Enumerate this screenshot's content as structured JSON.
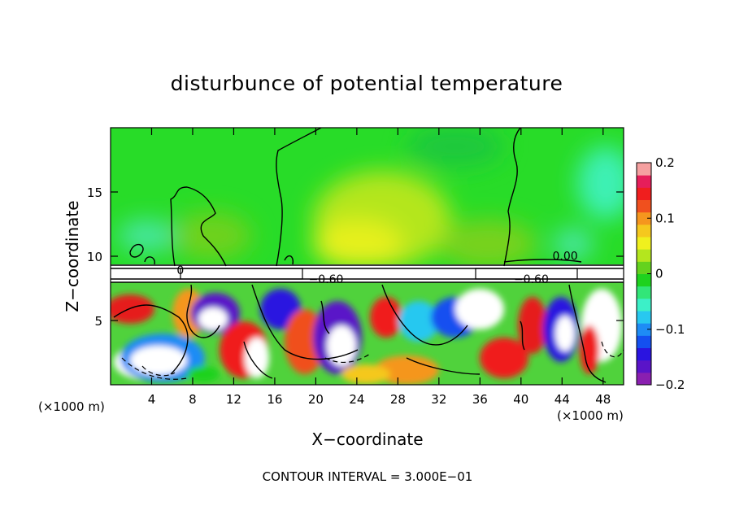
{
  "chart_data": {
    "type": "heatmap",
    "title": "disturbunce of potential temperature",
    "xlabel": "X−coordinate",
    "ylabel": "Z−coordinate",
    "x_unit_label": "(×1000 m)",
    "x_unit_label_right": "(×1000 m)",
    "footer": "CONTOUR INTERVAL = 3.000E−01",
    "xlim": [
      0,
      50
    ],
    "ylim": [
      0,
      20
    ],
    "x_ticks": [
      {
        "v": 4,
        "label": "4"
      },
      {
        "v": 8,
        "label": "8"
      },
      {
        "v": 12,
        "label": "12"
      },
      {
        "v": 16,
        "label": "16"
      },
      {
        "v": 20,
        "label": "20"
      },
      {
        "v": 24,
        "label": "24"
      },
      {
        "v": 28,
        "label": "28"
      },
      {
        "v": 32,
        "label": "32"
      },
      {
        "v": 36,
        "label": "36"
      },
      {
        "v": 40,
        "label": "40"
      },
      {
        "v": 44,
        "label": "44"
      },
      {
        "v": 48,
        "label": "48"
      }
    ],
    "y_ticks": [
      {
        "v": 5,
        "label": "5"
      },
      {
        "v": 10,
        "label": "10"
      },
      {
        "v": 15,
        "label": "15"
      }
    ],
    "colorbar": {
      "range": [
        -0.2,
        0.2
      ],
      "ticks": [
        {
          "v": 0.2,
          "label": "0.2"
        },
        {
          "v": 0.1,
          "label": "0.1"
        },
        {
          "v": 0,
          "label": "0"
        },
        {
          "v": -0.1,
          "label": "−0.1"
        },
        {
          "v": -0.2,
          "label": "−0.2"
        }
      ],
      "colors": [
        "#8a1fb0",
        "#5a14c8",
        "#2a14e0",
        "#1450f0",
        "#1e8cf5",
        "#28c8f0",
        "#3cf0c8",
        "#32e678",
        "#1ed21e",
        "#64d21e",
        "#b4e61e",
        "#f0f01e",
        "#f5c81e",
        "#f5961e",
        "#f0501e",
        "#f01e1e",
        "#e61e5a",
        "#f5a0a0"
      ]
    },
    "contour_labels": [
      {
        "x": 21.0,
        "z": 7.9,
        "text": "−0.60"
      },
      {
        "x": 41.0,
        "z": 7.9,
        "text": "−0.60"
      },
      {
        "x": 44.3,
        "z": 9.7,
        "text": "0.00"
      },
      {
        "x": 6.8,
        "z": 8.6,
        "text": "0"
      }
    ]
  }
}
